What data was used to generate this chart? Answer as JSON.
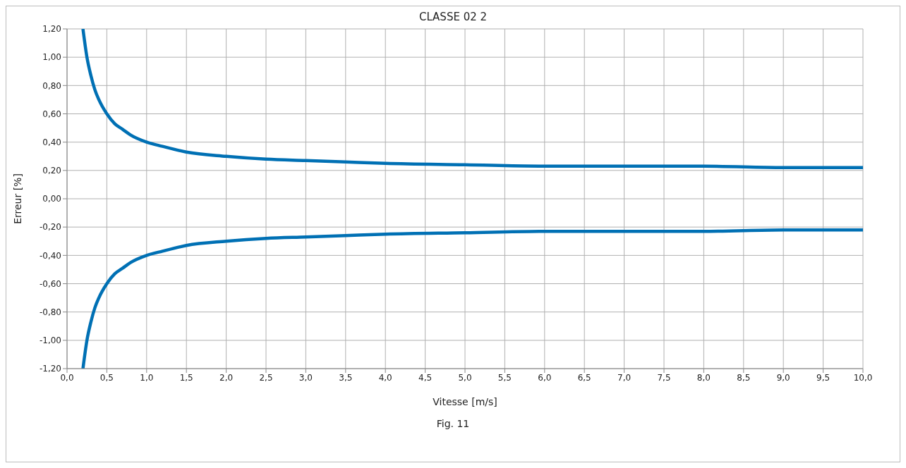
{
  "chart_data": {
    "type": "line",
    "title": "CLASSE 02 2",
    "xlabel": "Vitesse  [m/s]",
    "ylabel": "Erreur [%]",
    "annotations": [
      "Fig. 11"
    ],
    "x": [
      0.2,
      0.25,
      0.3,
      0.35,
      0.4,
      0.5,
      0.6,
      0.7,
      0.8,
      1.0,
      1.2,
      1.5,
      2.0,
      2.5,
      3.0,
      3.5,
      4.0,
      5.0,
      6.0,
      7.0,
      8.0,
      9.0,
      10.0
    ],
    "series": [
      {
        "color": "#0070b4",
        "values": [
          1.2,
          1.0,
          0.87,
          0.77,
          0.7,
          0.6,
          0.53,
          0.49,
          0.45,
          0.4,
          0.37,
          0.33,
          0.3,
          0.28,
          0.27,
          0.26,
          0.25,
          0.24,
          0.23,
          0.23,
          0.23,
          0.22,
          0.22
        ]
      },
      {
        "color": "#0070b4",
        "values": [
          -1.2,
          -1.0,
          -0.87,
          -0.77,
          -0.7,
          -0.6,
          -0.53,
          -0.49,
          -0.45,
          -0.4,
          -0.37,
          -0.33,
          -0.3,
          -0.28,
          -0.27,
          -0.26,
          -0.25,
          -0.24,
          -0.23,
          -0.23,
          -0.23,
          -0.22,
          -0.22
        ]
      }
    ],
    "xlim": [
      0,
      10
    ],
    "ylim": [
      -1.2,
      1.2
    ],
    "xticks": [
      {
        "value": 0,
        "label": "0,0"
      },
      {
        "value": 0.5,
        "label": "0,5"
      },
      {
        "value": 1,
        "label": "1,0"
      },
      {
        "value": 1.5,
        "label": "1,5"
      },
      {
        "value": 2,
        "label": "2,0"
      },
      {
        "value": 2.5,
        "label": "2,5"
      },
      {
        "value": 3,
        "label": "3,0"
      },
      {
        "value": 3.5,
        "label": "3,5"
      },
      {
        "value": 4,
        "label": "4,0"
      },
      {
        "value": 4.5,
        "label": "4,5"
      },
      {
        "value": 5,
        "label": "5,0"
      },
      {
        "value": 5.5,
        "label": "5,5"
      },
      {
        "value": 6,
        "label": "6,0"
      },
      {
        "value": 6.5,
        "label": "6,5"
      },
      {
        "value": 7,
        "label": "7,0"
      },
      {
        "value": 7.5,
        "label": "7,5"
      },
      {
        "value": 8,
        "label": "8,0"
      },
      {
        "value": 8.5,
        "label": "8,5"
      },
      {
        "value": 9,
        "label": "9,0"
      },
      {
        "value": 9.5,
        "label": "9,5"
      },
      {
        "value": 10,
        "label": "10,0"
      }
    ],
    "yticks": [
      {
        "value": -1.2,
        "label": "-1,20"
      },
      {
        "value": -1,
        "label": "-1,00"
      },
      {
        "value": -0.8,
        "label": "-0,80"
      },
      {
        "value": -0.6,
        "label": "-0,60"
      },
      {
        "value": -0.4,
        "label": "-0,40"
      },
      {
        "value": -0.2,
        "label": "-0,20"
      },
      {
        "value": 0,
        "label": "0,00"
      },
      {
        "value": 0.2,
        "label": "0,20"
      },
      {
        "value": 0.4,
        "label": "0,40"
      },
      {
        "value": 0.6,
        "label": "0,60"
      },
      {
        "value": 0.8,
        "label": "0,80"
      },
      {
        "value": 1,
        "label": "1,00"
      },
      {
        "value": 1.2,
        "label": "1,20"
      }
    ],
    "grid": true,
    "line_style": "solid",
    "marker": "none"
  }
}
